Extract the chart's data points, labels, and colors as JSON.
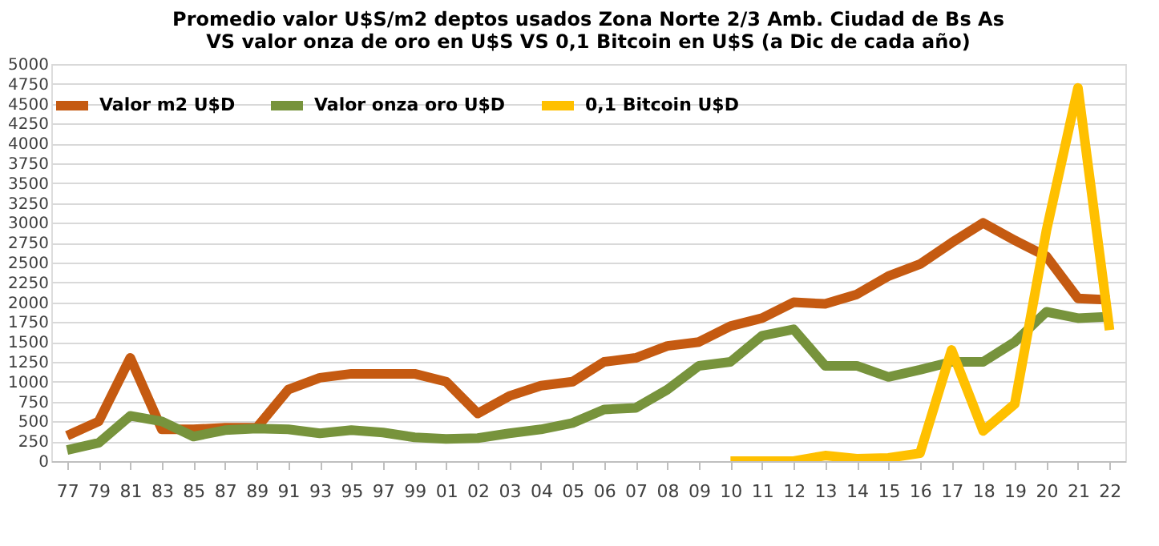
{
  "chart_data": {
    "type": "line",
    "title": [
      "Promedio valor U$S/m2 deptos usados Zona Norte 2/3 Amb. Ciudad de Bs As",
      "VS valor onza de oro en U$S VS 0,1 Bitcoin en U$S (a Dic de cada año)"
    ],
    "categories": [
      "77",
      "79",
      "81",
      "83",
      "85",
      "87",
      "89",
      "91",
      "93",
      "95",
      "97",
      "99",
      "01",
      "02",
      "03",
      "04",
      "05",
      "06",
      "07",
      "08",
      "09",
      "10",
      "11",
      "12",
      "13",
      "14",
      "15",
      "16",
      "17",
      "18",
      "19",
      "20",
      "21",
      "22"
    ],
    "series": [
      {
        "name": "Valor m2 U$D",
        "color": "#c55a11",
        "values": [
          320,
          500,
          1300,
          400,
          400,
          420,
          420,
          900,
          1050,
          1100,
          1100,
          1100,
          1000,
          600,
          820,
          950,
          1000,
          1250,
          1300,
          1450,
          1500,
          1700,
          1800,
          2000,
          1980,
          2100,
          2330,
          2480,
          2750,
          3000,
          2780,
          2580,
          2050,
          2030
        ]
      },
      {
        "name": "Valor onza oro U$D",
        "color": "#77933c",
        "values": [
          140,
          230,
          570,
          500,
          310,
          390,
          410,
          400,
          350,
          390,
          360,
          300,
          280,
          290,
          350,
          400,
          480,
          650,
          670,
          900,
          1200,
          1250,
          1580,
          1660,
          1200,
          1200,
          1060,
          1150,
          1250,
          1250,
          1500,
          1880,
          1800,
          1820
        ]
      },
      {
        "name": "0,1 Bitcoin U$D",
        "color": "#ffc000",
        "values": [
          null,
          null,
          null,
          null,
          null,
          null,
          null,
          null,
          null,
          null,
          null,
          null,
          null,
          null,
          null,
          null,
          null,
          null,
          null,
          null,
          null,
          0,
          0,
          0,
          70,
          30,
          40,
          100,
          1400,
          380,
          720,
          2900,
          4700,
          1650
        ]
      }
    ],
    "ylim": [
      0,
      5000
    ],
    "yticks": [
      0,
      250,
      500,
      750,
      1000,
      1250,
      1500,
      1750,
      2000,
      2250,
      2500,
      2750,
      3000,
      3250,
      3500,
      3750,
      4000,
      4250,
      4500,
      4750,
      5000
    ],
    "grid": "y",
    "legend": "top",
    "line_style": "solid",
    "marker": "none"
  }
}
